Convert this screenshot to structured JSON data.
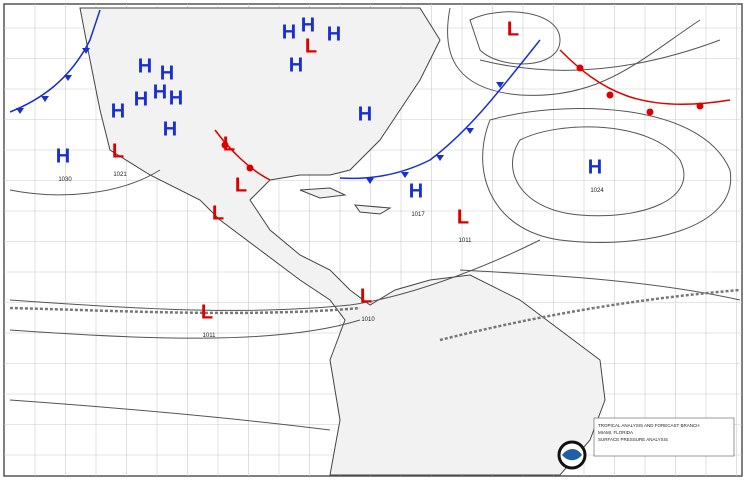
{
  "map": {
    "pressure_centers": [
      {
        "label": "H",
        "value": "1030"
      },
      {
        "label": "L",
        "value": "1021"
      },
      {
        "label": "H"
      },
      {
        "label": "H"
      },
      {
        "label": "H"
      },
      {
        "label": "H"
      },
      {
        "label": "H"
      },
      {
        "label": "H"
      },
      {
        "label": "H"
      },
      {
        "label": "H"
      },
      {
        "label": "H"
      },
      {
        "label": "H"
      },
      {
        "label": "H"
      },
      {
        "label": "L"
      },
      {
        "label": "L"
      },
      {
        "label": "H"
      },
      {
        "label": "L"
      },
      {
        "label": "L"
      },
      {
        "label": "L"
      },
      {
        "label": "H",
        "value": "1017"
      },
      {
        "label": "L",
        "value": "1011"
      },
      {
        "label": "H",
        "value": "1024"
      },
      {
        "label": "L",
        "value": "1010"
      },
      {
        "label": "L",
        "value": "1011"
      }
    ],
    "legend": [
      "TROPICAL ANALYSIS AND FORECAST BRANCH",
      "MIAMI, FLORIDA",
      "SURFACE PRESSURE ANALYSIS"
    ]
  }
}
